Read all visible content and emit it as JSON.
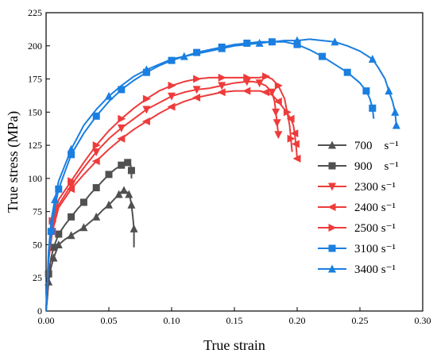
{
  "chart_data": {
    "type": "line",
    "title": "",
    "xlabel": "True strain",
    "ylabel": "True stress (MPa)",
    "xlim": [
      0,
      0.3
    ],
    "ylim": [
      0,
      225
    ],
    "xticks": [
      0.0,
      0.05,
      0.1,
      0.15,
      0.2,
      0.25,
      0.3
    ],
    "xtick_labels": [
      "0.00",
      "0.05",
      "0.10",
      "0.15",
      "0.20",
      "0.25",
      "0.30"
    ],
    "yticks": [
      0,
      25,
      50,
      75,
      100,
      125,
      150,
      175,
      200,
      225
    ],
    "ytick_labels": [
      "0",
      "25",
      "50",
      "75",
      "100",
      "125",
      "150",
      "175",
      "200",
      "225"
    ],
    "grid": false,
    "legend_position": "right",
    "series": [
      {
        "name": "700",
        "unit": "s⁻¹",
        "color": "#505050",
        "marker": "triangle-up",
        "x": [
          0.0,
          0.001,
          0.002,
          0.004,
          0.006,
          0.008,
          0.01,
          0.015,
          0.02,
          0.025,
          0.03,
          0.035,
          0.04,
          0.045,
          0.05,
          0.055,
          0.058,
          0.06,
          0.062,
          0.064,
          0.066,
          0.067,
          0.068,
          0.069,
          0.07,
          0.07
        ],
        "y": [
          0,
          10,
          22,
          33,
          40,
          45,
          50,
          54,
          57,
          60,
          63,
          67,
          71,
          76,
          80,
          85,
          88,
          90,
          91,
          90,
          88,
          85,
          80,
          72,
          62,
          48
        ]
      },
      {
        "name": "900",
        "unit": "s⁻¹",
        "color": "#505050",
        "marker": "square",
        "x": [
          0.0,
          0.001,
          0.002,
          0.004,
          0.006,
          0.008,
          0.01,
          0.015,
          0.02,
          0.025,
          0.03,
          0.035,
          0.04,
          0.045,
          0.05,
          0.055,
          0.06,
          0.063,
          0.065,
          0.067,
          0.068,
          0.068
        ],
        "y": [
          0,
          12,
          28,
          40,
          48,
          53,
          58,
          65,
          71,
          77,
          82,
          88,
          93,
          98,
          103,
          107,
          110,
          112,
          112,
          112,
          106,
          100
        ]
      },
      {
        "name": "2300",
        "unit": "s⁻¹",
        "color": "#ee3b3b",
        "marker": "triangle-down",
        "x": [
          0.0,
          0.002,
          0.005,
          0.01,
          0.02,
          0.03,
          0.04,
          0.05,
          0.06,
          0.07,
          0.08,
          0.09,
          0.1,
          0.11,
          0.12,
          0.13,
          0.14,
          0.15,
          0.16,
          0.165,
          0.17,
          0.175,
          0.18,
          0.182,
          0.183,
          0.184,
          0.185
        ],
        "y": [
          0,
          40,
          65,
          80,
          95,
          108,
          120,
          130,
          138,
          145,
          152,
          157,
          162,
          165,
          167,
          168,
          170,
          172,
          173,
          173,
          172,
          170,
          165,
          158,
          150,
          142,
          133
        ]
      },
      {
        "name": "2400",
        "unit": "s⁻¹",
        "color": "#ee3b3b",
        "marker": "triangle-left",
        "x": [
          0.0,
          0.002,
          0.005,
          0.01,
          0.02,
          0.03,
          0.04,
          0.05,
          0.06,
          0.07,
          0.08,
          0.09,
          0.1,
          0.11,
          0.12,
          0.13,
          0.14,
          0.15,
          0.16,
          0.17,
          0.175,
          0.18,
          0.185,
          0.19,
          0.195,
          0.197,
          0.198,
          0.199,
          0.2
        ],
        "y": [
          0,
          38,
          60,
          78,
          92,
          103,
          113,
          122,
          130,
          137,
          143,
          149,
          154,
          158,
          161,
          163,
          165,
          166,
          166,
          166,
          165,
          163,
          158,
          152,
          145,
          140,
          134,
          126,
          115
        ]
      },
      {
        "name": "2500",
        "unit": "s⁻¹",
        "color": "#ee3b3b",
        "marker": "triangle-right",
        "x": [
          0.0,
          0.002,
          0.005,
          0.01,
          0.02,
          0.03,
          0.04,
          0.05,
          0.06,
          0.07,
          0.08,
          0.09,
          0.1,
          0.11,
          0.12,
          0.13,
          0.14,
          0.15,
          0.16,
          0.17,
          0.175,
          0.18,
          0.185,
          0.19,
          0.192,
          0.194,
          0.195,
          0.196
        ],
        "y": [
          0,
          42,
          68,
          84,
          98,
          112,
          125,
          136,
          145,
          153,
          160,
          166,
          170,
          173,
          175,
          176,
          176,
          176,
          176,
          176,
          177,
          175,
          170,
          160,
          150,
          140,
          130,
          120
        ]
      },
      {
        "name": "3100",
        "unit": "s⁻¹",
        "color": "#1a7fe0",
        "marker": "square",
        "x": [
          0.0,
          0.002,
          0.004,
          0.007,
          0.01,
          0.015,
          0.02,
          0.03,
          0.04,
          0.05,
          0.06,
          0.07,
          0.08,
          0.09,
          0.1,
          0.11,
          0.12,
          0.13,
          0.14,
          0.15,
          0.16,
          0.17,
          0.18,
          0.19,
          0.2,
          0.21,
          0.22,
          0.23,
          0.24,
          0.25,
          0.255,
          0.258,
          0.26,
          0.261
        ],
        "y": [
          0,
          40,
          60,
          78,
          92,
          105,
          118,
          134,
          147,
          158,
          167,
          174,
          180,
          185,
          189,
          192,
          195,
          197,
          199,
          201,
          202,
          203,
          203,
          203,
          201,
          197,
          192,
          186,
          180,
          172,
          166,
          160,
          153,
          145
        ]
      },
      {
        "name": "3400",
        "unit": "s⁻¹",
        "color": "#1a7fe0",
        "marker": "triangle-up",
        "x": [
          0.0,
          0.002,
          0.004,
          0.007,
          0.01,
          0.015,
          0.02,
          0.03,
          0.04,
          0.05,
          0.06,
          0.07,
          0.08,
          0.09,
          0.1,
          0.11,
          0.12,
          0.13,
          0.14,
          0.15,
          0.16,
          0.17,
          0.18,
          0.19,
          0.2,
          0.21,
          0.22,
          0.23,
          0.24,
          0.25,
          0.26,
          0.265,
          0.27,
          0.273,
          0.276,
          0.278,
          0.279
        ],
        "y": [
          0,
          45,
          68,
          84,
          98,
          110,
          122,
          140,
          152,
          162,
          170,
          177,
          182,
          186,
          190,
          192,
          194,
          196,
          198,
          200,
          201,
          202,
          203,
          204,
          204,
          205,
          204,
          203,
          200,
          196,
          190,
          183,
          175,
          166,
          158,
          150,
          140
        ]
      }
    ]
  }
}
